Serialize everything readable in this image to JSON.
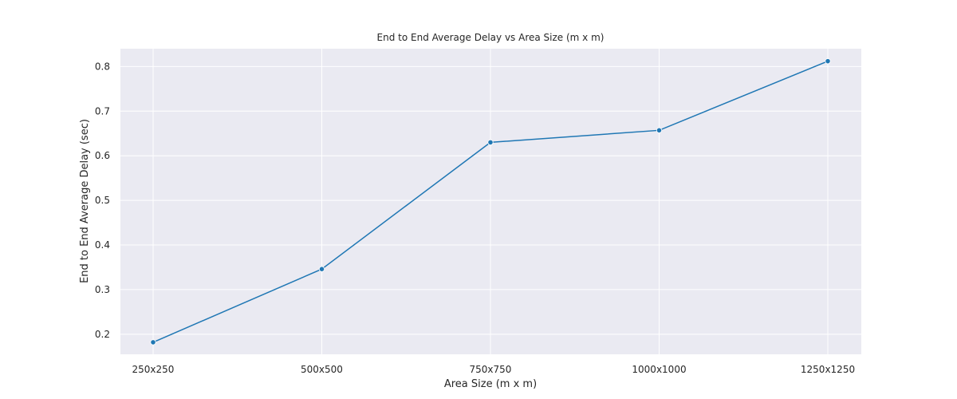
{
  "chart_data": {
    "type": "line",
    "title": "End to End Average Delay vs Area Size (m x m)",
    "xlabel": "Area Size (m x m)",
    "ylabel": "End to End Average Delay (sec)",
    "categories": [
      "250x250",
      "500x500",
      "750x750",
      "1000x1000",
      "1250x1250"
    ],
    "series": [
      {
        "values": [
          0.182,
          0.346,
          0.63,
          0.657,
          0.812
        ],
        "color": "#1f77b4",
        "marker": "circle"
      }
    ],
    "ylim": [
      0.155,
      0.84
    ],
    "yticks": [
      0.2,
      0.3,
      0.4,
      0.5,
      0.6,
      0.7,
      0.8
    ],
    "grid": true,
    "background": "#eaeaf2",
    "grid_color": "#ffffff"
  }
}
